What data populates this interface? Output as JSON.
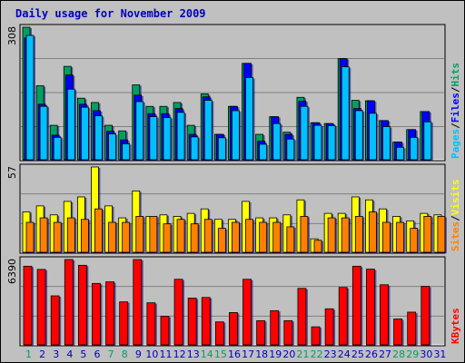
{
  "title": "Daily usage for November 2009",
  "colors": {
    "hits": "#00a060",
    "files": "#0000ff",
    "pages": "#00c0ff",
    "visits": "#ffff00",
    "sites": "#ff8000",
    "kbytes": "#ff0000",
    "weekend_day": "#00a060",
    "weekday": "#0000c0"
  },
  "chart_data": [
    {
      "type": "bar",
      "panel": "hits-files-pages",
      "scale_label": "308",
      "ylim": [
        0,
        308
      ],
      "x": [
        "1",
        "2",
        "3",
        "4",
        "5",
        "6",
        "7",
        "8",
        "9",
        "10",
        "11",
        "12",
        "13",
        "14",
        "15",
        "16",
        "17",
        "18",
        "19",
        "20",
        "21",
        "22",
        "23",
        "24",
        "25",
        "26",
        "27",
        "28",
        "29",
        "30",
        "31"
      ],
      "weekend": [
        true,
        false,
        false,
        false,
        false,
        false,
        true,
        true,
        false,
        false,
        false,
        false,
        false,
        true,
        true,
        false,
        false,
        false,
        false,
        false,
        true,
        true,
        false,
        false,
        false,
        false,
        false,
        true,
        true,
        false,
        false
      ],
      "legend": [
        {
          "text": "Hits",
          "color": "#00a060"
        },
        {
          "text": "/",
          "color": "#000000"
        },
        {
          "text": "Files",
          "color": "#0000ff"
        },
        {
          "text": "/",
          "color": "#000000"
        },
        {
          "text": "Pages",
          "color": "#00c0ff"
        }
      ],
      "series": [
        {
          "name": "Hits",
          "values": [
            308,
            172,
            80,
            217,
            143,
            133,
            80,
            67,
            174,
            124,
            124,
            133,
            80,
            153,
            59,
            124,
            224,
            59,
            100,
            64,
            145,
            86,
            84,
            235,
            138,
            137,
            91,
            41,
            70,
            112,
            0
          ]
        },
        {
          "name": "Files",
          "values": [
            283,
            129,
            57,
            197,
            129,
            114,
            66,
            46,
            150,
            107,
            107,
            119,
            59,
            146,
            59,
            124,
            224,
            43,
            100,
            59,
            136,
            86,
            84,
            235,
            119,
            137,
            91,
            41,
            70,
            112,
            0
          ]
        },
        {
          "name": "Pages",
          "values": [
            289,
            124,
            52,
            164,
            122,
            102,
            60,
            37,
            135,
            100,
            98,
            110,
            53,
            138,
            51,
            114,
            191,
            36,
            84,
            48,
            124,
            80,
            79,
            216,
            114,
            108,
            77,
            29,
            52,
            88,
            0
          ]
        }
      ]
    },
    {
      "type": "bar",
      "panel": "visits-sites",
      "scale_label": "57",
      "ylim": [
        0,
        57
      ],
      "legend": [
        {
          "text": "Visits",
          "color": "#ffff00"
        },
        {
          "text": "/",
          "color": "#000000"
        },
        {
          "text": "Sites",
          "color": "#ff8000"
        }
      ],
      "series": [
        {
          "name": "Visits",
          "values": [
            27,
            31,
            25,
            34,
            37,
            57,
            31,
            23,
            41,
            24,
            25,
            24,
            26,
            29,
            22,
            22,
            34,
            23,
            23,
            25,
            35,
            9,
            26,
            26,
            37,
            35,
            29,
            24,
            21,
            26,
            25
          ]
        },
        {
          "name": "Sites",
          "values": [
            20,
            23,
            20,
            23,
            22,
            29,
            20,
            20,
            24,
            24,
            19,
            22,
            19,
            22,
            16,
            20,
            22,
            20,
            20,
            17,
            24,
            8,
            23,
            23,
            24,
            27,
            20,
            20,
            16,
            24,
            24
          ]
        }
      ]
    },
    {
      "type": "bar",
      "panel": "kbytes",
      "scale_label": "6390",
      "ylim": [
        0,
        6390
      ],
      "legend": [
        {
          "text": "KBytes",
          "color": "#ff0000"
        }
      ],
      "series": [
        {
          "name": "KBytes",
          "values": [
            5890,
            5650,
            3670,
            6390,
            5960,
            4600,
            4720,
            3220,
            6390,
            3150,
            2140,
            4910,
            3500,
            3550,
            1720,
            2420,
            4910,
            1810,
            2560,
            1810,
            4230,
            1350,
            2700,
            4300,
            5890,
            5670,
            4500,
            1940,
            2450,
            4380,
            0
          ]
        }
      ]
    }
  ]
}
